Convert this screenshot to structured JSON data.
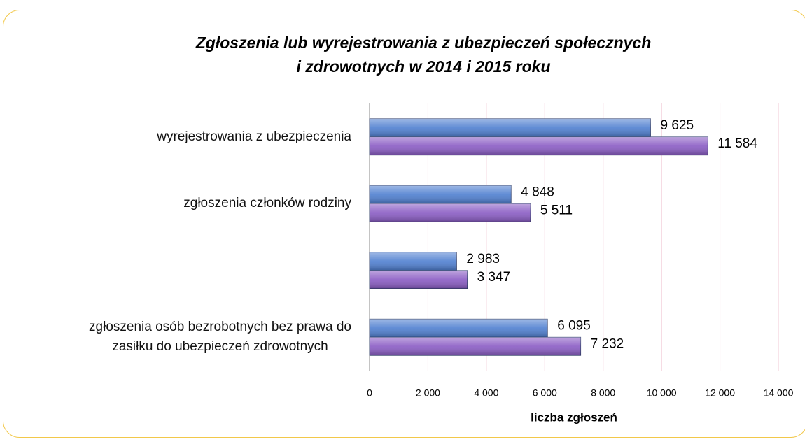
{
  "chart_data": {
    "type": "bar",
    "orientation": "horizontal",
    "title": "Zgłoszenia lub wyrejestrowania  z ubezpieczeń społecznych\ni zdrowotnych  w 2014 i 2015 roku",
    "categories": [
      "wyrejestrowania z ubezpieczenia",
      "zgłoszenia członków rodziny",
      null,
      "zgłoszenia osób bezrobotnych bez prawa do\nzasiłku do ubezpieczeń zdrowotnych"
    ],
    "series": [
      {
        "color": "#4f7fd0",
        "values": [
          9625,
          4848,
          2983,
          6095
        ],
        "value_labels": [
          "9 625",
          "4 848",
          "2 983",
          "6 095"
        ]
      },
      {
        "color": "#8a5cc4",
        "values": [
          11584,
          5511,
          3347,
          7232
        ],
        "value_labels": [
          "11 584",
          "5 511",
          "3 347",
          "7 232"
        ]
      }
    ],
    "xlabel": "liczba zgłoszeń",
    "xlim": [
      0,
      14000
    ],
    "xticks": [
      0,
      {
        "value": 2000,
        "label": "2 000"
      },
      {
        "value": 4000,
        "label": "4 000"
      },
      {
        "value": 6000,
        "label": "6 000"
      },
      {
        "value": 8000,
        "label": "8 000"
      },
      {
        "value": 10000,
        "label": "10 000"
      },
      {
        "value": 12000,
        "label": "12 000"
      },
      {
        "value": 14000,
        "label": "14 000"
      }
    ],
    "grid": true
  }
}
